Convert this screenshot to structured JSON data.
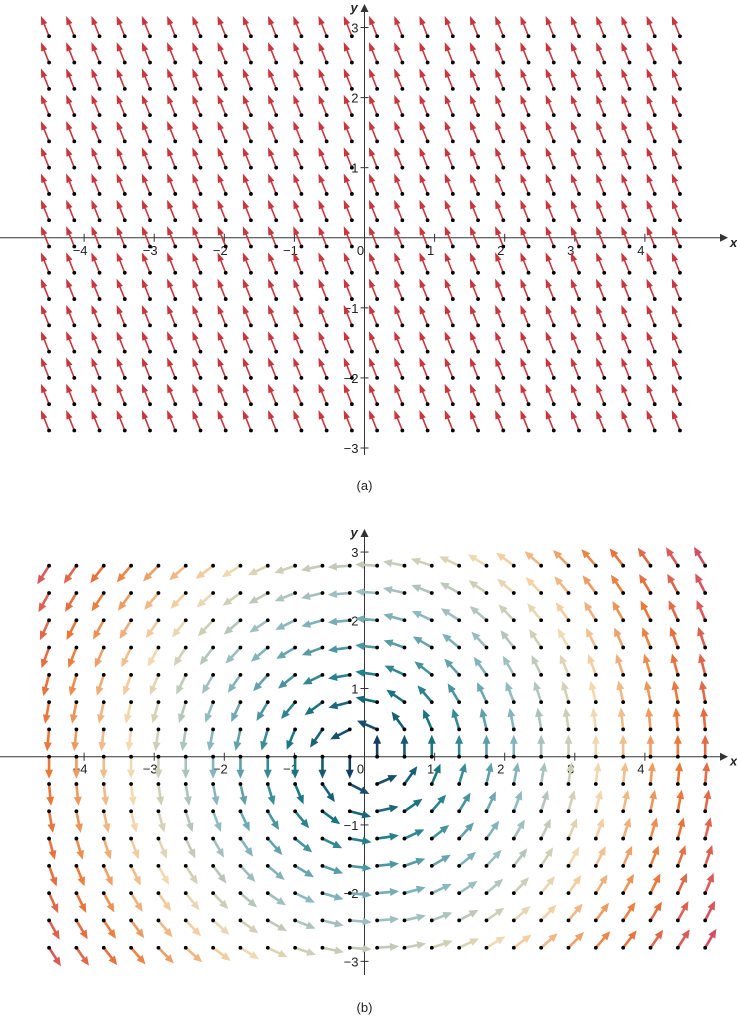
{
  "chart_data": [
    {
      "type": "quiver",
      "caption": "(a)",
      "x_label": "x",
      "y_label": "y",
      "xlim": [
        -5.2,
        5.1
      ],
      "ylim": [
        -3.1,
        3.25
      ],
      "xticks": [
        {
          "value": -4,
          "label": "−4"
        },
        {
          "value": -3,
          "label": "−3"
        },
        {
          "value": -2,
          "label": "−2"
        },
        {
          "value": -1,
          "label": "−1"
        },
        0,
        1,
        2,
        3,
        4
      ],
      "yticks": [
        {
          "value": -3,
          "label": "−3"
        },
        {
          "value": -2,
          "label": "−2"
        },
        {
          "value": -1,
          "label": "−1"
        },
        1,
        2,
        3
      ],
      "grid_x": [
        -4.5,
        -4.14,
        -3.78,
        -3.42,
        -3.06,
        -2.7,
        -2.34,
        -1.98,
        -1.62,
        -1.26,
        -0.9,
        -0.54,
        -0.18,
        0.18,
        0.54,
        0.9,
        1.26,
        1.62,
        1.98,
        2.34,
        2.7,
        3.06,
        3.42,
        3.78,
        4.14,
        4.5
      ],
      "grid_y": [
        -2.75,
        -2.375,
        -2,
        -1.625,
        -1.25,
        -0.875,
        -0.5,
        -0.125,
        0.25,
        0.625,
        1,
        1.375,
        1.75,
        2.125,
        2.5,
        2.875
      ],
      "u": -1,
      "v": 2.5,
      "color": "#c8363e"
    },
    {
      "type": "quiver",
      "caption": "(b)",
      "x_label": "x",
      "y_label": "y",
      "xlim": [
        -5.2,
        5.1
      ],
      "ylim": [
        -3.2,
        3.25
      ],
      "xticks": [
        {
          "value": -4,
          "label": "−4"
        },
        {
          "value": -3,
          "label": "−3"
        },
        {
          "value": -2,
          "label": "−2"
        },
        {
          "value": -1,
          "label": "−1"
        },
        0,
        1,
        2,
        3,
        4
      ],
      "yticks": [
        {
          "value": -3,
          "label": "−3"
        },
        {
          "value": -2,
          "label": "−2"
        },
        {
          "value": -1,
          "label": "−1"
        },
        1,
        2,
        3
      ],
      "grid_x": [
        -4.5,
        -4.11,
        -3.72,
        -3.33,
        -2.94,
        -2.55,
        -2.16,
        -1.77,
        -1.38,
        -0.99,
        -0.6,
        -0.21,
        0.18,
        0.57,
        0.96,
        1.35,
        1.74,
        2.13,
        2.52,
        2.91,
        3.3,
        3.69,
        4.08,
        4.47,
        4.86
      ],
      "grid_y": [
        -2.8,
        -2.4,
        -2,
        -1.6,
        -1.2,
        -0.8,
        -0.4,
        0,
        0.4,
        0.8,
        1.2,
        1.6,
        2,
        2.4,
        2.8
      ],
      "u_by_row": [
        2.8,
        2.4,
        2,
        1.6,
        1.2,
        0.8,
        0.4,
        0,
        -0.4,
        -0.8,
        -1.2,
        -1.6,
        -2,
        -2.4,
        -2.8
      ],
      "v_by_col": [
        -4.5,
        -4.11,
        -3.72,
        -3.33,
        -2.94,
        -2.55,
        -2.16,
        -1.77,
        -1.38,
        -0.99,
        -0.6,
        -0.21,
        0.18,
        0.57,
        0.96,
        1.35,
        1.74,
        2.13,
        2.52,
        2.91,
        3.3,
        3.69,
        4.08,
        4.47,
        4.86
      ],
      "colormap": [
        "#14305a",
        "#1c7c86",
        "#8fb9c1",
        "#f3dbb2",
        "#ea7a38",
        "#d24e66"
      ]
    }
  ]
}
